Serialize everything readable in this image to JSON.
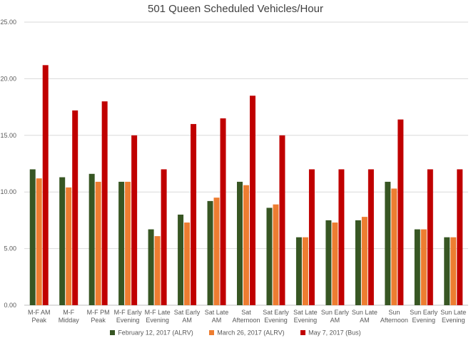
{
  "chart_data": {
    "type": "bar",
    "title": "501 Queen Scheduled Vehicles/Hour",
    "xlabel": "",
    "ylabel": "",
    "ylim": [
      0,
      25
    ],
    "y_ticks": [
      "0.00",
      "5.00",
      "10.00",
      "15.00",
      "20.00",
      "25.00"
    ],
    "grid": true,
    "legend_position": "bottom",
    "categories": [
      [
        "M-F AM",
        "Peak"
      ],
      [
        "M-F",
        "Midday"
      ],
      [
        "M-F PM",
        "Peak"
      ],
      [
        "M-F Early",
        "Evening"
      ],
      [
        "M-F Late",
        "Evening"
      ],
      [
        "Sat Early",
        "AM"
      ],
      [
        "Sat Late",
        "AM"
      ],
      [
        "Sat",
        "Afternoon"
      ],
      [
        "Sat Early",
        "Evening"
      ],
      [
        "Sat Late",
        "Evening"
      ],
      [
        "Sun Early",
        "AM"
      ],
      [
        "Sun Late",
        "AM"
      ],
      [
        "Sun",
        "Afternoon"
      ],
      [
        "Sun Early",
        "Evening"
      ],
      [
        "Sun Late",
        "Evening"
      ]
    ],
    "series": [
      {
        "name": "February 12, 2017 (ALRV)",
        "color": "#375623",
        "values": [
          12.0,
          11.3,
          11.6,
          10.9,
          6.7,
          8.0,
          9.2,
          10.9,
          8.6,
          6.0,
          7.5,
          7.5,
          10.9,
          6.7,
          6.0
        ]
      },
      {
        "name": "March 26, 2017 (ALRV)",
        "color": "#ED7D31",
        "values": [
          11.2,
          10.4,
          10.9,
          10.9,
          6.1,
          7.3,
          9.5,
          10.6,
          8.9,
          6.0,
          7.3,
          7.8,
          10.3,
          6.7,
          6.0
        ]
      },
      {
        "name": "May 7, 2017 (Bus)",
        "color": "#C00000",
        "values": [
          21.2,
          17.2,
          18.0,
          15.0,
          12.0,
          16.0,
          16.5,
          18.5,
          15.0,
          12.0,
          12.0,
          12.0,
          16.4,
          12.0,
          12.0
        ]
      }
    ]
  }
}
